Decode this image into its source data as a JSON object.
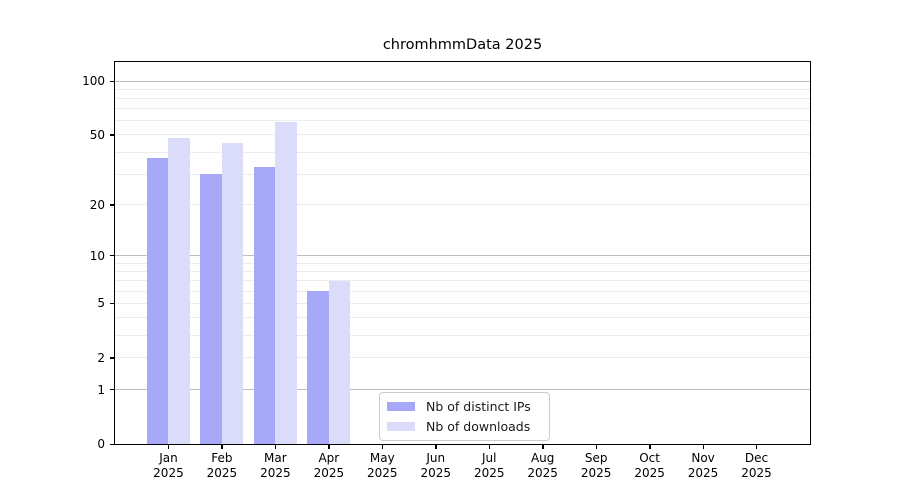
{
  "chart_data": {
    "type": "bar",
    "title": "chromhmmData 2025",
    "year_label": "2025",
    "categories": [
      "Jan",
      "Feb",
      "Mar",
      "Apr",
      "May",
      "Jun",
      "Jul",
      "Aug",
      "Sep",
      "Oct",
      "Nov",
      "Dec"
    ],
    "series": [
      {
        "name": "Nb of distinct IPs",
        "color": "#a8a8f8",
        "values": [
          37,
          30,
          33,
          6,
          null,
          null,
          null,
          null,
          null,
          null,
          null,
          null
        ]
      },
      {
        "name": "Nb of downloads",
        "color": "#dbdbfa",
        "values": [
          48,
          45,
          59,
          7,
          null,
          null,
          null,
          null,
          null,
          null,
          null,
          null
        ]
      }
    ],
    "yscale": "log1p",
    "ylim": [
      0,
      128
    ],
    "yticks": [
      100,
      50,
      20,
      10,
      5,
      2,
      1,
      0
    ],
    "grid": {
      "minor_values": [
        2,
        3,
        4,
        5,
        6,
        7,
        8,
        9,
        20,
        30,
        40,
        50,
        60,
        70,
        80,
        90
      ],
      "major_values": [
        1,
        10,
        100
      ],
      "minor_color": "#ececec",
      "major_color": "#bdbdbd"
    },
    "legend": {
      "position": "bottom-center-left"
    },
    "xlabel": "",
    "ylabel": ""
  }
}
